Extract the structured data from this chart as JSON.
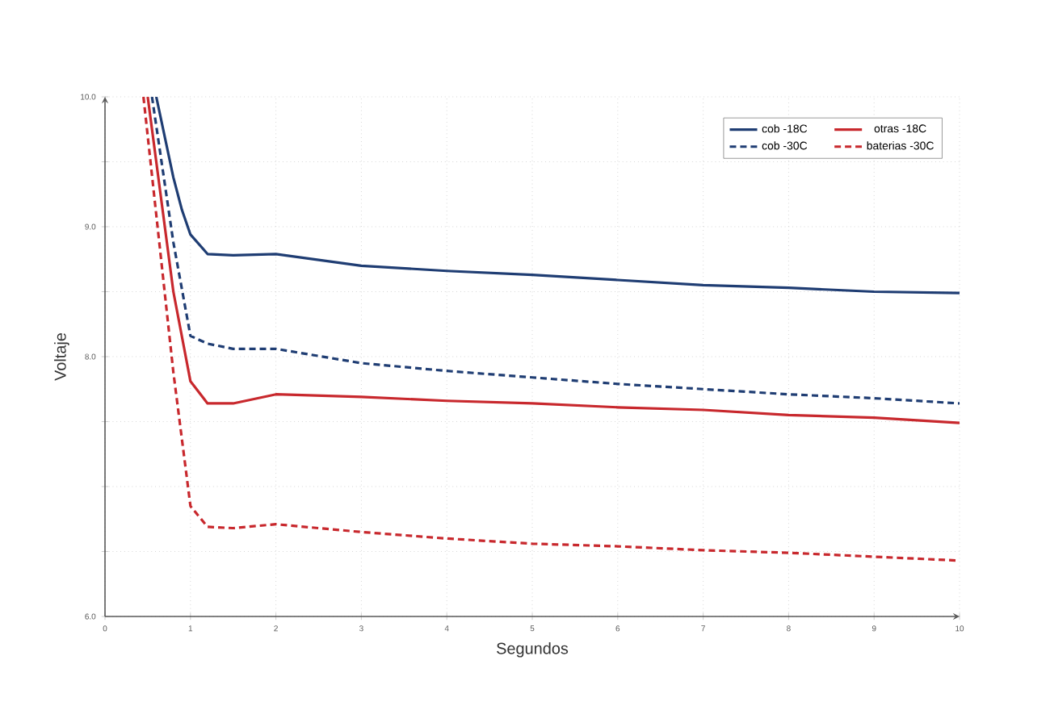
{
  "chart_data": {
    "type": "line",
    "xlabel": "Segundos",
    "ylabel": "Voltaje",
    "xlim": [
      0,
      10
    ],
    "xticks": [
      0,
      1,
      2,
      3,
      4,
      5,
      6,
      7,
      8,
      9,
      10
    ],
    "ylim": [
      6,
      10
    ],
    "yticks": [
      {
        "value": 6,
        "label": "6.0"
      },
      {
        "value": 6.5,
        "label": null
      },
      {
        "value": 7,
        "label": null
      },
      {
        "value": 7.5,
        "label": null
      },
      {
        "value": 8,
        "label": "8.0"
      },
      {
        "value": 8.5,
        "label": null
      },
      {
        "value": 9,
        "label": "9.0"
      },
      {
        "value": 9.5,
        "label": null
      },
      {
        "value": 10,
        "label": "10.0"
      }
    ],
    "grid": true,
    "legend": "top right",
    "marker": "none",
    "series": [
      {
        "name": "cob -18C",
        "color": "#1f3d73",
        "line_style": "solid",
        "x": [
          0.6,
          0.8,
          0.9,
          1.0,
          1.2,
          1.5,
          2,
          3,
          4,
          5,
          6,
          7,
          8,
          9,
          10
        ],
        "values": [
          10,
          9.38,
          9.13,
          8.94,
          8.79,
          8.78,
          8.79,
          8.7,
          8.66,
          8.63,
          8.59,
          8.55,
          8.53,
          8.5,
          8.49
        ]
      },
      {
        "name": "cob -30C",
        "color": "#1f3d73",
        "line_style": "dashed",
        "x": [
          0.55,
          0.8,
          1.0,
          1.2,
          1.5,
          2,
          3,
          4,
          5,
          6,
          7,
          8,
          9,
          10
        ],
        "values": [
          10,
          8.88,
          8.16,
          8.1,
          8.06,
          8.06,
          7.95,
          7.89,
          7.84,
          7.79,
          7.75,
          7.71,
          7.68,
          7.64
        ]
      },
      {
        "name": "otras -18C",
        "color": "#c8282d",
        "line_style": "solid",
        "x": [
          0.5,
          0.8,
          1.0,
          1.2,
          1.5,
          2,
          3,
          4,
          5,
          6,
          7,
          8,
          9,
          10
        ],
        "values": [
          10,
          8.5,
          7.81,
          7.64,
          7.64,
          7.71,
          7.69,
          7.66,
          7.64,
          7.61,
          7.59,
          7.55,
          7.53,
          7.49
        ]
      },
      {
        "name": "baterias -30C",
        "color": "#c8282d",
        "line_style": "dashed",
        "x": [
          0.45,
          0.8,
          1.0,
          1.2,
          1.5,
          2,
          3,
          4,
          5,
          6,
          7,
          8,
          9,
          10
        ],
        "values": [
          10,
          7.88,
          6.85,
          6.69,
          6.68,
          6.71,
          6.65,
          6.6,
          6.56,
          6.54,
          6.51,
          6.49,
          6.46,
          6.43
        ]
      }
    ]
  }
}
